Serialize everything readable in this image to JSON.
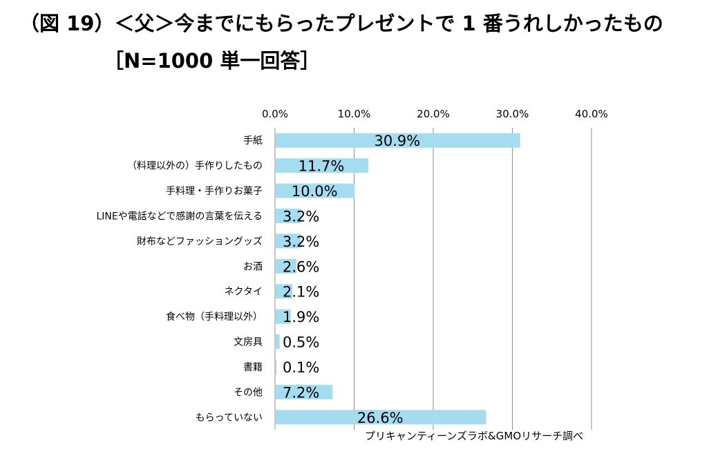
{
  "chart_data": {
    "type": "bar",
    "orientation": "horizontal",
    "title": "（図 19）＜父＞今までにもらったプレゼントで 1 番うれしかったもの",
    "subtitle": "［N=1000 単一回答］",
    "categories": [
      "手紙",
      "（料理以外の）手作りしたもの",
      "手料理・手作りお菓子",
      "LINEや電話などで感謝の言葉を伝える",
      "財布などファッショングッズ",
      "お酒",
      "ネクタイ",
      "食べ物（手料理以外）",
      "文房具",
      "書籍",
      "その他",
      "もらっていない"
    ],
    "values": [
      30.9,
      11.7,
      10.0,
      3.2,
      3.2,
      2.6,
      2.1,
      1.9,
      0.5,
      0.1,
      7.2,
      26.6
    ],
    "value_labels": [
      "30.9%",
      "11.7%",
      "10.0%",
      "3.2%",
      "3.2%",
      "2.6%",
      "2.1%",
      "1.9%",
      "0.5%",
      "0.1%",
      "7.2%",
      "26.6%"
    ],
    "x_ticks": [
      "0.0%",
      "10.0%",
      "20.0%",
      "30.0%",
      "40.0%"
    ],
    "xlim": [
      0,
      40
    ],
    "axis_position": "top",
    "grid": true,
    "bar_color": "#a6dcf0",
    "source": "プリキャンティーンズラボ&GMOリサーチ調べ"
  }
}
